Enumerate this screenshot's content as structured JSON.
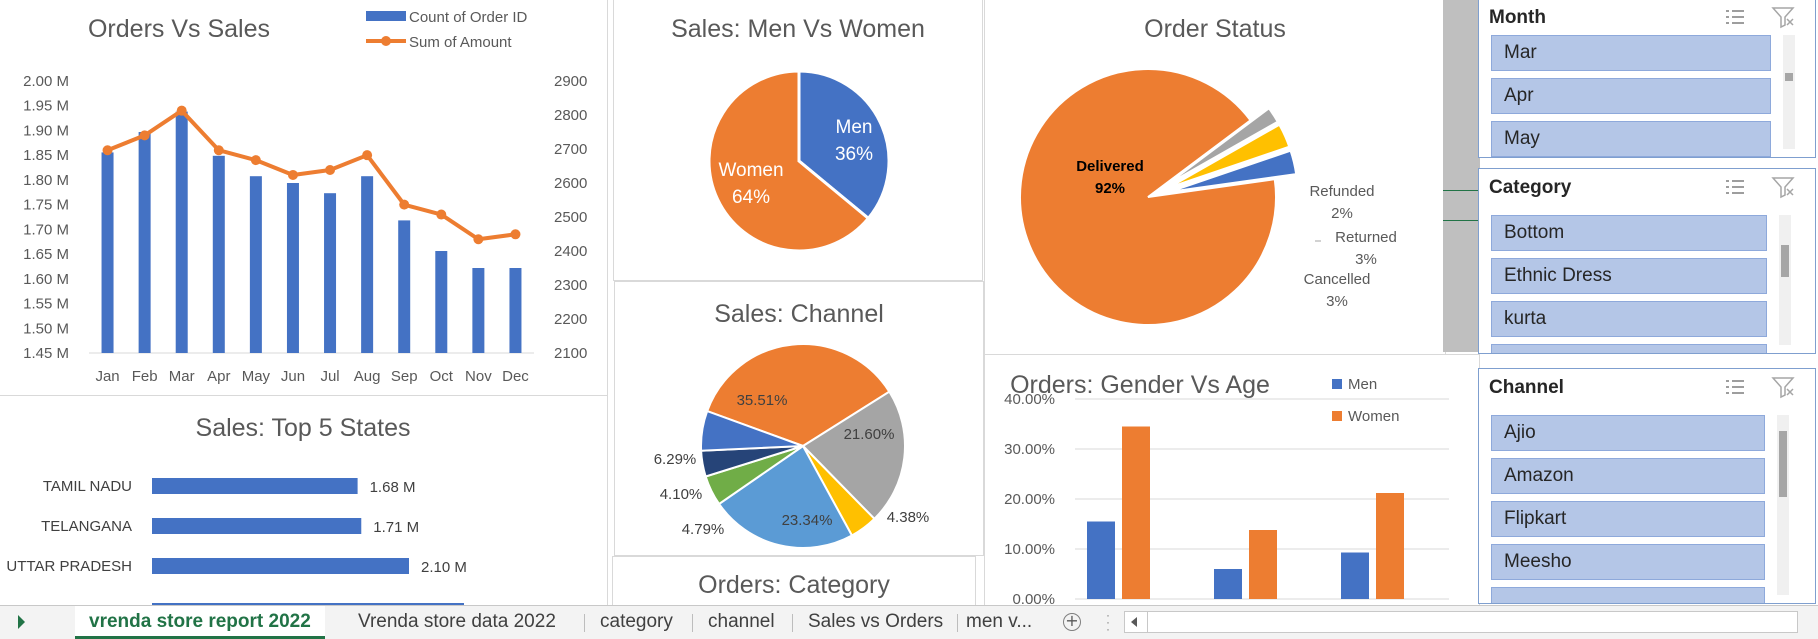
{
  "orders_vs_sales": {
    "title": "Orders Vs Sales",
    "legend": [
      "Count of Order ID",
      "Sum of Amount"
    ],
    "left_ticks": [
      "2.00 M",
      "1.95 M",
      "1.90 M",
      "1.85 M",
      "1.80 M",
      "1.75 M",
      "1.70 M",
      "1.65 M",
      "1.60 M",
      "1.55 M",
      "1.50 M",
      "1.45 M"
    ],
    "right_ticks": [
      "2900",
      "2800",
      "2700",
      "2600",
      "2500",
      "2400",
      "2300",
      "2200",
      "2100"
    ],
    "months": [
      "Jan",
      "Feb",
      "Mar",
      "Apr",
      "May",
      "Jun",
      "Jul",
      "Aug",
      "Sep",
      "Oct",
      "Nov",
      "Dec"
    ]
  },
  "men_women": {
    "title": "Sales: Men Vs Women",
    "men_label": "Men",
    "men_pct": "36%",
    "women_label": "Women",
    "women_pct": "64%"
  },
  "order_status": {
    "title": "Order Status",
    "delivered": "Delivered",
    "delivered_pct": "92%",
    "refunded": "Refunded",
    "refunded_pct": "2%",
    "returned": "Returned",
    "returned_pct": "3%",
    "cancelled": "Cancelled",
    "cancelled_pct": "3%"
  },
  "top_states": {
    "title": "Sales: Top 5 States"
  },
  "channel_pie": {
    "title": "Sales: Channel",
    "labels": [
      "35.51%",
      "21.60%",
      "4.38%",
      "23.34%",
      "4.79%",
      "4.10%",
      "6.29%"
    ]
  },
  "gender_age": {
    "title": "Orders: Gender Vs Age",
    "legend": [
      "Men",
      "Women"
    ],
    "y_ticks": [
      "40.00%",
      "30.00%",
      "20.00%",
      "10.00%",
      "0.00%"
    ]
  },
  "category_chart": {
    "title": "Orders: Category"
  },
  "slicers": {
    "month": {
      "title": "Month",
      "items": [
        "Mar",
        "Apr",
        "May"
      ]
    },
    "category": {
      "title": "Category",
      "items": [
        "Bottom",
        "Ethnic Dress",
        "kurta"
      ]
    },
    "channel": {
      "title": "Channel",
      "items": [
        "Ajio",
        "Amazon",
        "Flipkart",
        "Meesho"
      ]
    }
  },
  "tabs": [
    "vrenda store report 2022",
    "Vrenda store data 2022",
    "category",
    "channel",
    "Sales vs Orders",
    "men v..."
  ],
  "colors": {
    "blue": "#4472c4",
    "orange": "#ed7d31",
    "grey": "#a5a5a5",
    "gold": "#ffc000",
    "green": "#217346"
  },
  "chart_data": [
    {
      "type": "bar",
      "title": "Orders Vs Sales",
      "categories": [
        "Jan",
        "Feb",
        "Mar",
        "Apr",
        "May",
        "Jun",
        "Jul",
        "Aug",
        "Sep",
        "Oct",
        "Nov",
        "Dec"
      ],
      "series": [
        {
          "name": "Count of Order ID",
          "values": [
            2690,
            2750,
            2810,
            2680,
            2620,
            2600,
            2570,
            2620,
            2490,
            2400,
            2350,
            2350
          ]
        },
        {
          "name": "Sum of Amount",
          "values": [
            1.86,
            1.89,
            1.94,
            1.86,
            1.84,
            1.81,
            1.82,
            1.85,
            1.75,
            1.73,
            1.68,
            1.69
          ]
        }
      ],
      "ylim_left": [
        1.45,
        2.0
      ],
      "ylim_right": [
        2100,
        2900
      ]
    },
    {
      "type": "pie",
      "title": "Sales: Men Vs Women",
      "categories": [
        "Men",
        "Women"
      ],
      "values": [
        36,
        64
      ]
    },
    {
      "type": "pie",
      "title": "Order Status",
      "categories": [
        "Delivered",
        "Refunded",
        "Returned",
        "Cancelled"
      ],
      "values": [
        92,
        2,
        3,
        3
      ]
    },
    {
      "type": "bar",
      "title": "Sales: Top 5 States",
      "categories": [
        "TAMIL NADU",
        "TELANGANA",
        "UTTAR PRADESH"
      ],
      "values": [
        1.68,
        1.71,
        2.1
      ],
      "value_labels": [
        "1.68 M",
        "1.71 M",
        "2.10 M"
      ]
    },
    {
      "type": "pie",
      "title": "Sales: Channel",
      "values": [
        35.51,
        21.6,
        4.38,
        23.34,
        4.79,
        4.1,
        6.29
      ]
    },
    {
      "type": "bar",
      "title": "Orders: Gender Vs Age",
      "series": [
        {
          "name": "Men",
          "values": [
            15.5,
            6.0,
            9.3
          ]
        },
        {
          "name": "Women",
          "values": [
            34.5,
            13.8,
            21.2
          ]
        }
      ],
      "ylim": [
        0,
        40
      ]
    }
  ]
}
